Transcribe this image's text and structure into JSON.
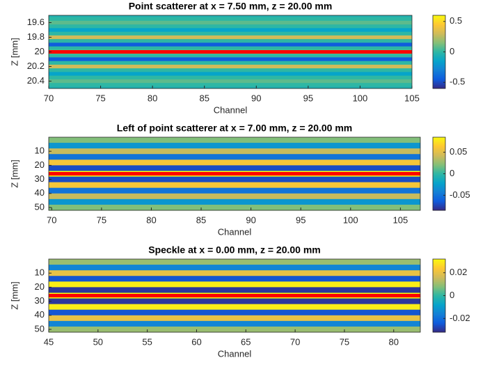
{
  "chart_data": [
    {
      "type": "heatmap",
      "title": "Point scatterer at x = 7.50 mm, z = 20.00 mm",
      "xlabel": "Channel",
      "ylabel": "Z [mm]",
      "xlim": [
        70,
        105
      ],
      "xticks": [
        70,
        75,
        80,
        85,
        90,
        95,
        100,
        105
      ],
      "ylim": [
        19.5,
        20.5
      ],
      "y_reversed": true,
      "yticks": [
        19.6,
        19.8,
        20,
        20.2,
        20.4
      ],
      "z": [
        19.5,
        19.55,
        19.6,
        19.65,
        19.7,
        19.75,
        19.8,
        19.85,
        19.9,
        19.95,
        20,
        20.05,
        20.1,
        20.15,
        20.2,
        20.25,
        20.3,
        20.35,
        20.4,
        20.45,
        20.5
      ],
      "values": [
        -0.05,
        0,
        0.08,
        0,
        -0.15,
        0,
        0.3,
        0,
        -0.45,
        0,
        0.6,
        0,
        -0.45,
        0,
        0.3,
        0,
        -0.15,
        0,
        0.08,
        0,
        -0.05
      ],
      "marker_z": 20,
      "marker_color": "#ff0000",
      "clim": [
        -0.6,
        0.6
      ],
      "cticks": [
        0.5,
        0,
        -0.5
      ]
    },
    {
      "type": "heatmap",
      "title": "Left of point scatterer at x = 7.00 mm, z = 20.00 mm",
      "xlabel": "Channel",
      "ylabel": "Z [mm]",
      "xlim": [
        69.7,
        107
      ],
      "xticks": [
        70,
        75,
        80,
        85,
        90,
        95,
        100,
        105
      ],
      "ylim": [
        0,
        52
      ],
      "y_reversed": true,
      "yticks": [
        10,
        20,
        30,
        40,
        50
      ],
      "z": [
        2,
        6,
        10,
        14,
        18,
        22,
        26,
        30,
        34,
        38,
        42,
        46,
        50
      ],
      "values": [
        0.02,
        -0.03,
        0.04,
        -0.05,
        0.06,
        -0.07,
        0.09,
        -0.07,
        0.06,
        -0.05,
        0.04,
        -0.03,
        0.02
      ],
      "marker_z": 26,
      "marker_color": "#ff0000",
      "clim": [
        -0.085,
        0.085
      ],
      "cticks": [
        0.05,
        0,
        -0.05
      ]
    },
    {
      "type": "heatmap",
      "title": "Speckle at x = 0.00 mm, z = 20.00 mm",
      "xlabel": "Channel",
      "ylabel": "Z [mm]",
      "xlim": [
        45,
        82.7
      ],
      "xticks": [
        45,
        50,
        55,
        60,
        65,
        70,
        75,
        80
      ],
      "ylim": [
        0,
        52
      ],
      "y_reversed": true,
      "yticks": [
        10,
        20,
        30,
        40,
        50
      ],
      "z": [
        2,
        6,
        10,
        14,
        18,
        22,
        26,
        30,
        34,
        38,
        42,
        46,
        50
      ],
      "values": [
        0.01,
        -0.015,
        0.02,
        -0.025,
        0.03,
        -0.03,
        0.035,
        -0.03,
        0.03,
        -0.025,
        0.02,
        -0.015,
        0.01
      ],
      "marker_z": 26,
      "marker_color": "#ff0000",
      "clim": [
        -0.032,
        0.032
      ],
      "cticks": [
        0.02,
        0,
        -0.02
      ]
    }
  ]
}
